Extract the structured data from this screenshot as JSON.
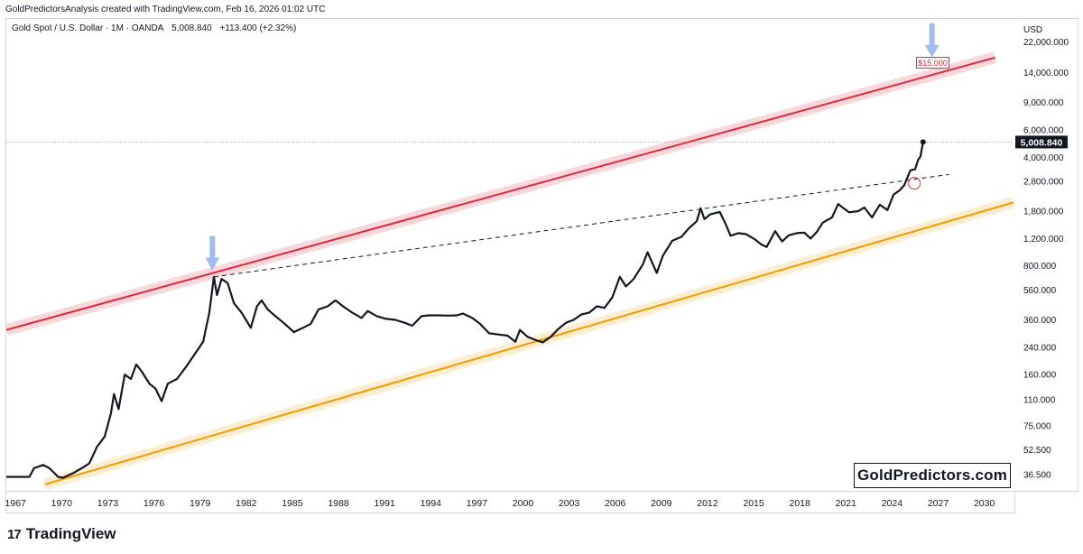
{
  "header": {
    "attribution": "GoldPredictorsAnalysis created with TradingView.com, Feb 16, 2026 01:02 UTC"
  },
  "symbol": {
    "name": "Gold Spot / U.S. Dollar · 1M · OANDA",
    "last": "5,008.840",
    "change": "+113.400 (+2.32%)"
  },
  "brand": {
    "watermark": "GoldPredictors.com",
    "footer": "TradingView",
    "footer_mark": "17"
  },
  "colors": {
    "line": "#131722",
    "upper_channel": "#e0283a",
    "lower_channel": "#f59a00",
    "arrow": "#8fb2ec",
    "price_tag": "#131722"
  },
  "chart_data": {
    "type": "line",
    "title": "Gold Spot / U.S. Dollar · 1M · OANDA",
    "y_scale": "log",
    "currency": "USD",
    "ylim": [
      29,
      31000
    ],
    "xlim": [
      1966.5,
      2032.0
    ],
    "y_ticks": [
      22000,
      14000,
      9000,
      6000,
      4000,
      2800,
      1800,
      1200,
      800,
      560,
      360,
      240,
      160,
      110,
      75,
      52.5,
      36.5
    ],
    "y_tick_labels": [
      "22,000.000",
      "14,000.000",
      "9,000.000",
      "6,000.000",
      "4,000.000",
      "2,800.000",
      "1,800.000",
      "1,200.000",
      "800.000",
      "560.000",
      "360.000",
      "240.000",
      "160.000",
      "110.000",
      "75.000",
      "52.500",
      "36.500"
    ],
    "x_ticks": [
      1967,
      1970,
      1973,
      1976,
      1979,
      1982,
      1985,
      1988,
      1991,
      1994,
      1997,
      2000,
      2003,
      2006,
      2009,
      2012,
      2015,
      2018,
      2021,
      2024,
      2027,
      2030
    ],
    "last_price_label": "5,008.840",
    "last_price": 5008.84,
    "price_series": [
      [
        1966.5,
        35.2
      ],
      [
        1968.0,
        35.2
      ],
      [
        1968.3,
        40
      ],
      [
        1968.9,
        42
      ],
      [
        1969.3,
        40
      ],
      [
        1969.9,
        35
      ],
      [
        1970.2,
        34.8
      ],
      [
        1970.8,
        37
      ],
      [
        1971.4,
        40
      ],
      [
        1971.9,
        43
      ],
      [
        1972.4,
        55
      ],
      [
        1972.9,
        64
      ],
      [
        1973.3,
        90
      ],
      [
        1973.5,
        120
      ],
      [
        1973.8,
        96
      ],
      [
        1974.2,
        160
      ],
      [
        1974.6,
        150
      ],
      [
        1974.95,
        186
      ],
      [
        1975.3,
        168
      ],
      [
        1975.8,
        140
      ],
      [
        1976.2,
        130
      ],
      [
        1976.6,
        108
      ],
      [
        1977.0,
        140
      ],
      [
        1977.6,
        150
      ],
      [
        1978.2,
        180
      ],
      [
        1978.8,
        220
      ],
      [
        1979.3,
        260
      ],
      [
        1979.7,
        400
      ],
      [
        1980.0,
        680
      ],
      [
        1980.2,
        520
      ],
      [
        1980.5,
        660
      ],
      [
        1980.9,
        620
      ],
      [
        1981.3,
        460
      ],
      [
        1981.8,
        400
      ],
      [
        1982.4,
        320
      ],
      [
        1982.8,
        440
      ],
      [
        1983.1,
        480
      ],
      [
        1983.5,
        420
      ],
      [
        1984.0,
        380
      ],
      [
        1984.6,
        340
      ],
      [
        1985.2,
        300
      ],
      [
        1985.8,
        320
      ],
      [
        1986.3,
        340
      ],
      [
        1986.8,
        420
      ],
      [
        1987.4,
        440
      ],
      [
        1987.9,
        480
      ],
      [
        1988.4,
        440
      ],
      [
        1989.0,
        400
      ],
      [
        1989.6,
        370
      ],
      [
        1990.0,
        410
      ],
      [
        1990.6,
        380
      ],
      [
        1991.2,
        365
      ],
      [
        1991.8,
        360
      ],
      [
        1992.4,
        345
      ],
      [
        1992.9,
        330
      ],
      [
        1993.5,
        380
      ],
      [
        1994.0,
        385
      ],
      [
        1994.6,
        385
      ],
      [
        1995.2,
        383
      ],
      [
        1995.8,
        385
      ],
      [
        1996.2,
        395
      ],
      [
        1996.8,
        370
      ],
      [
        1997.3,
        340
      ],
      [
        1997.9,
        295
      ],
      [
        1998.5,
        290
      ],
      [
        1999.1,
        285
      ],
      [
        1999.6,
        260
      ],
      [
        1999.9,
        310
      ],
      [
        2000.4,
        280
      ],
      [
        2001.0,
        265
      ],
      [
        2001.4,
        258
      ],
      [
        2001.9,
        280
      ],
      [
        2002.4,
        315
      ],
      [
        2002.9,
        345
      ],
      [
        2003.4,
        360
      ],
      [
        2003.9,
        390
      ],
      [
        2004.4,
        400
      ],
      [
        2004.9,
        440
      ],
      [
        2005.4,
        430
      ],
      [
        2005.9,
        500
      ],
      [
        2006.4,
        680
      ],
      [
        2006.8,
        590
      ],
      [
        2007.3,
        660
      ],
      [
        2007.9,
        820
      ],
      [
        2008.2,
        980
      ],
      [
        2008.8,
        720
      ],
      [
        2009.2,
        930
      ],
      [
        2009.8,
        1160
      ],
      [
        2010.4,
        1230
      ],
      [
        2010.9,
        1400
      ],
      [
        2011.4,
        1550
      ],
      [
        2011.65,
        1880
      ],
      [
        2011.9,
        1600
      ],
      [
        2012.3,
        1720
      ],
      [
        2012.9,
        1780
      ],
      [
        2013.3,
        1470
      ],
      [
        2013.6,
        1250
      ],
      [
        2014.1,
        1300
      ],
      [
        2014.6,
        1280
      ],
      [
        2015.1,
        1200
      ],
      [
        2015.6,
        1100
      ],
      [
        2015.95,
        1060
      ],
      [
        2016.5,
        1340
      ],
      [
        2016.95,
        1150
      ],
      [
        2017.4,
        1260
      ],
      [
        2017.9,
        1300
      ],
      [
        2018.4,
        1310
      ],
      [
        2018.8,
        1200
      ],
      [
        2019.2,
        1320
      ],
      [
        2019.6,
        1520
      ],
      [
        2020.2,
        1640
      ],
      [
        2020.6,
        2000
      ],
      [
        2020.95,
        1880
      ],
      [
        2021.3,
        1770
      ],
      [
        2021.9,
        1800
      ],
      [
        2022.3,
        1900
      ],
      [
        2022.8,
        1640
      ],
      [
        2023.3,
        1980
      ],
      [
        2023.8,
        1830
      ],
      [
        2024.2,
        2300
      ],
      [
        2024.6,
        2450
      ],
      [
        2024.9,
        2650
      ],
      [
        2025.3,
        3300
      ],
      [
        2025.6,
        3350
      ],
      [
        2025.8,
        3850
      ],
      [
        2025.95,
        4050
      ],
      [
        2026.12,
        5008.84
      ]
    ],
    "upper_channel": {
      "from": [
        1966.5,
        310
      ],
      "to": [
        2030.8,
        17500
      ],
      "color": "#e0283a"
    },
    "lower_channel": {
      "from": [
        1969.0,
        31.5
      ],
      "to": [
        2032.0,
        2050
      ],
      "color": "#f59a00"
    },
    "dashed_trendline": {
      "from": [
        1980.0,
        680
      ],
      "to": [
        2027.8,
        3100
      ]
    },
    "arrows": [
      {
        "x": 1979.9,
        "y": 750
      },
      {
        "x": 2026.7,
        "y": 17500
      }
    ],
    "circle_marker": {
      "x": 2025.55,
      "y": 2720
    },
    "annotations": [
      {
        "text": "$15,000",
        "x": 2026.75,
        "y": 16200
      }
    ]
  }
}
